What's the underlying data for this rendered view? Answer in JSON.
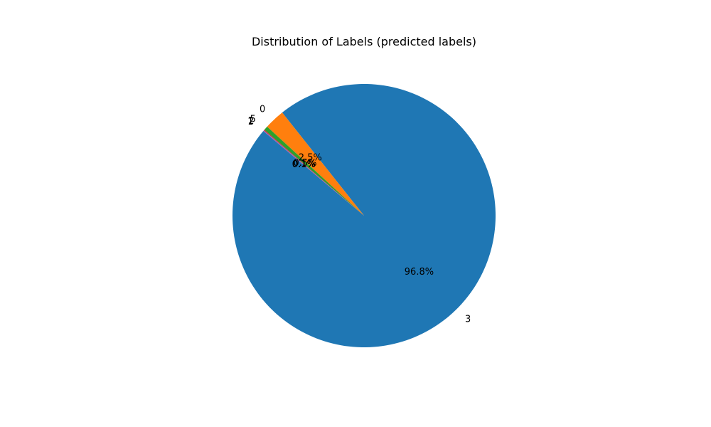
{
  "chart_data": {
    "type": "pie",
    "title": "Distribution of Labels (predicted labels)",
    "slices": [
      {
        "label": "3",
        "pct_label": "96.8%",
        "value": 96.8,
        "color": "#1f77b4"
      },
      {
        "label": "0",
        "pct_label": "2.5%",
        "value": 2.5,
        "color": "#ff7f0e"
      },
      {
        "label": "5",
        "pct_label": "0.5%",
        "value": 0.5,
        "color": "#2ca02c"
      },
      {
        "label": "2",
        "pct_label": "0.1%",
        "value": 0.1,
        "color": "#d62728"
      },
      {
        "label": "1",
        "pct_label": "0.1%",
        "value": 0.1,
        "color": "#9467bd"
      }
    ],
    "start_angle_deg": 140,
    "direction": "counterclockwise",
    "legend": "none"
  }
}
